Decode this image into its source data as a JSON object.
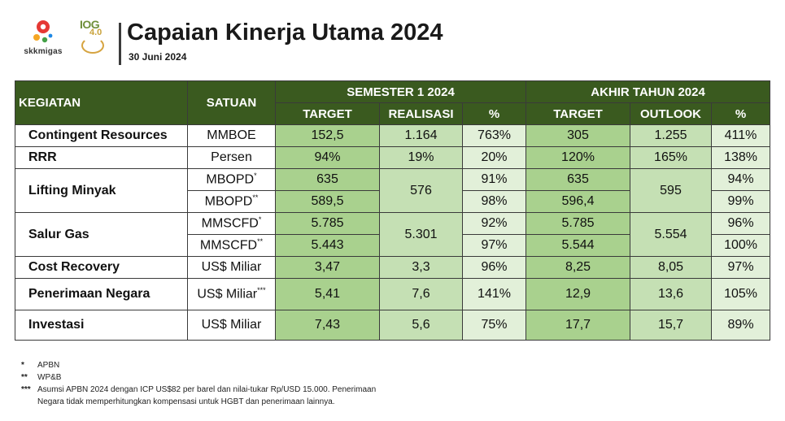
{
  "header": {
    "logo_skk_text": "skkmigas",
    "logo_iog_line1": "IOG",
    "logo_iog_line2": "4.0",
    "title": "Capaian Kinerja Utama 2024",
    "subtitle": "30 Juni 2024"
  },
  "colors": {
    "header_green": "#3a5a1f",
    "target_green": "#a9d18e",
    "realisasi_green": "#c5e0b4",
    "percent_green": "#e2f0d9"
  },
  "table": {
    "col_kegiatan": "KEGIATAN",
    "col_satuan": "SATUAN",
    "group_semester": "SEMESTER 1 2024",
    "group_akhir": "AKHIR TAHUN 2024",
    "sub_target": "TARGET",
    "sub_realisasi": "REALISASI",
    "sub_percent": "%",
    "sub_target2": "TARGET",
    "sub_outlook": "OUTLOOK",
    "sub_percent2": "%",
    "contingent": {
      "label": "Contingent Resources",
      "unit": "MMBOE",
      "s_target": "152,5",
      "s_realisasi": "1.164",
      "s_pct": "763%",
      "a_target": "305",
      "a_outlook": "1.255",
      "a_pct": "411%"
    },
    "rrr": {
      "label": "RRR",
      "unit": "Persen",
      "s_target": "94%",
      "s_realisasi": "19%",
      "s_pct": "20%",
      "a_target": "120%",
      "a_outlook": "165%",
      "a_pct": "138%"
    },
    "lifting": {
      "label": "Lifting Minyak",
      "unit1": "MBOPD",
      "mark1": "*",
      "unit2": "MBOPD",
      "mark2": "**",
      "s_target1": "635",
      "s_target2": "589,5",
      "s_realisasi": "576",
      "s_pct1": "91%",
      "s_pct2": "98%",
      "a_target1": "635",
      "a_target2": "596,4",
      "a_outlook": "595",
      "a_pct1": "94%",
      "a_pct2": "99%"
    },
    "salur": {
      "label": "Salur Gas",
      "unit1": "MMSCFD",
      "mark1": "*",
      "unit2": "MMSCFD",
      "mark2": "**",
      "s_target1": "5.785",
      "s_target2": "5.443",
      "s_realisasi": "5.301",
      "s_pct1": "92%",
      "s_pct2": "97%",
      "a_target1": "5.785",
      "a_target2": "5.544",
      "a_outlook": "5.554",
      "a_pct1": "96%",
      "a_pct2": "100%"
    },
    "cost": {
      "label": "Cost Recovery",
      "unit": "US$ Miliar",
      "s_target": "3,47",
      "s_realisasi": "3,3",
      "s_pct": "96%",
      "a_target": "8,25",
      "a_outlook": "8,05",
      "a_pct": "97%"
    },
    "penerimaan": {
      "label": "Penerimaan Negara",
      "unit": "US$ Miliar",
      "mark": "***",
      "s_target": "5,41",
      "s_realisasi": "7,6",
      "s_pct": "141%",
      "a_target": "12,9",
      "a_outlook": "13,6",
      "a_pct": "105%"
    },
    "investasi": {
      "label": "Investasi",
      "unit": "US$ Miliar",
      "s_target": "7,43",
      "s_realisasi": "5,6",
      "s_pct": "75%",
      "a_target": "17,7",
      "a_outlook": "15,7",
      "a_pct": "89%"
    }
  },
  "footnotes": {
    "f1_mark": "*",
    "f1_text": "APBN",
    "f2_mark": "**",
    "f2_text": "WP&B",
    "f3_mark": "***",
    "f3_text": "Asumsi APBN 2024  dengan ICP US$82 per barel dan nilai-tukar Rp/USD 15.000. Penerimaan",
    "f3_text2": "Negara  tidak memperhitungkan kompensasi untuk HGBT dan penerimaan lainnya."
  }
}
